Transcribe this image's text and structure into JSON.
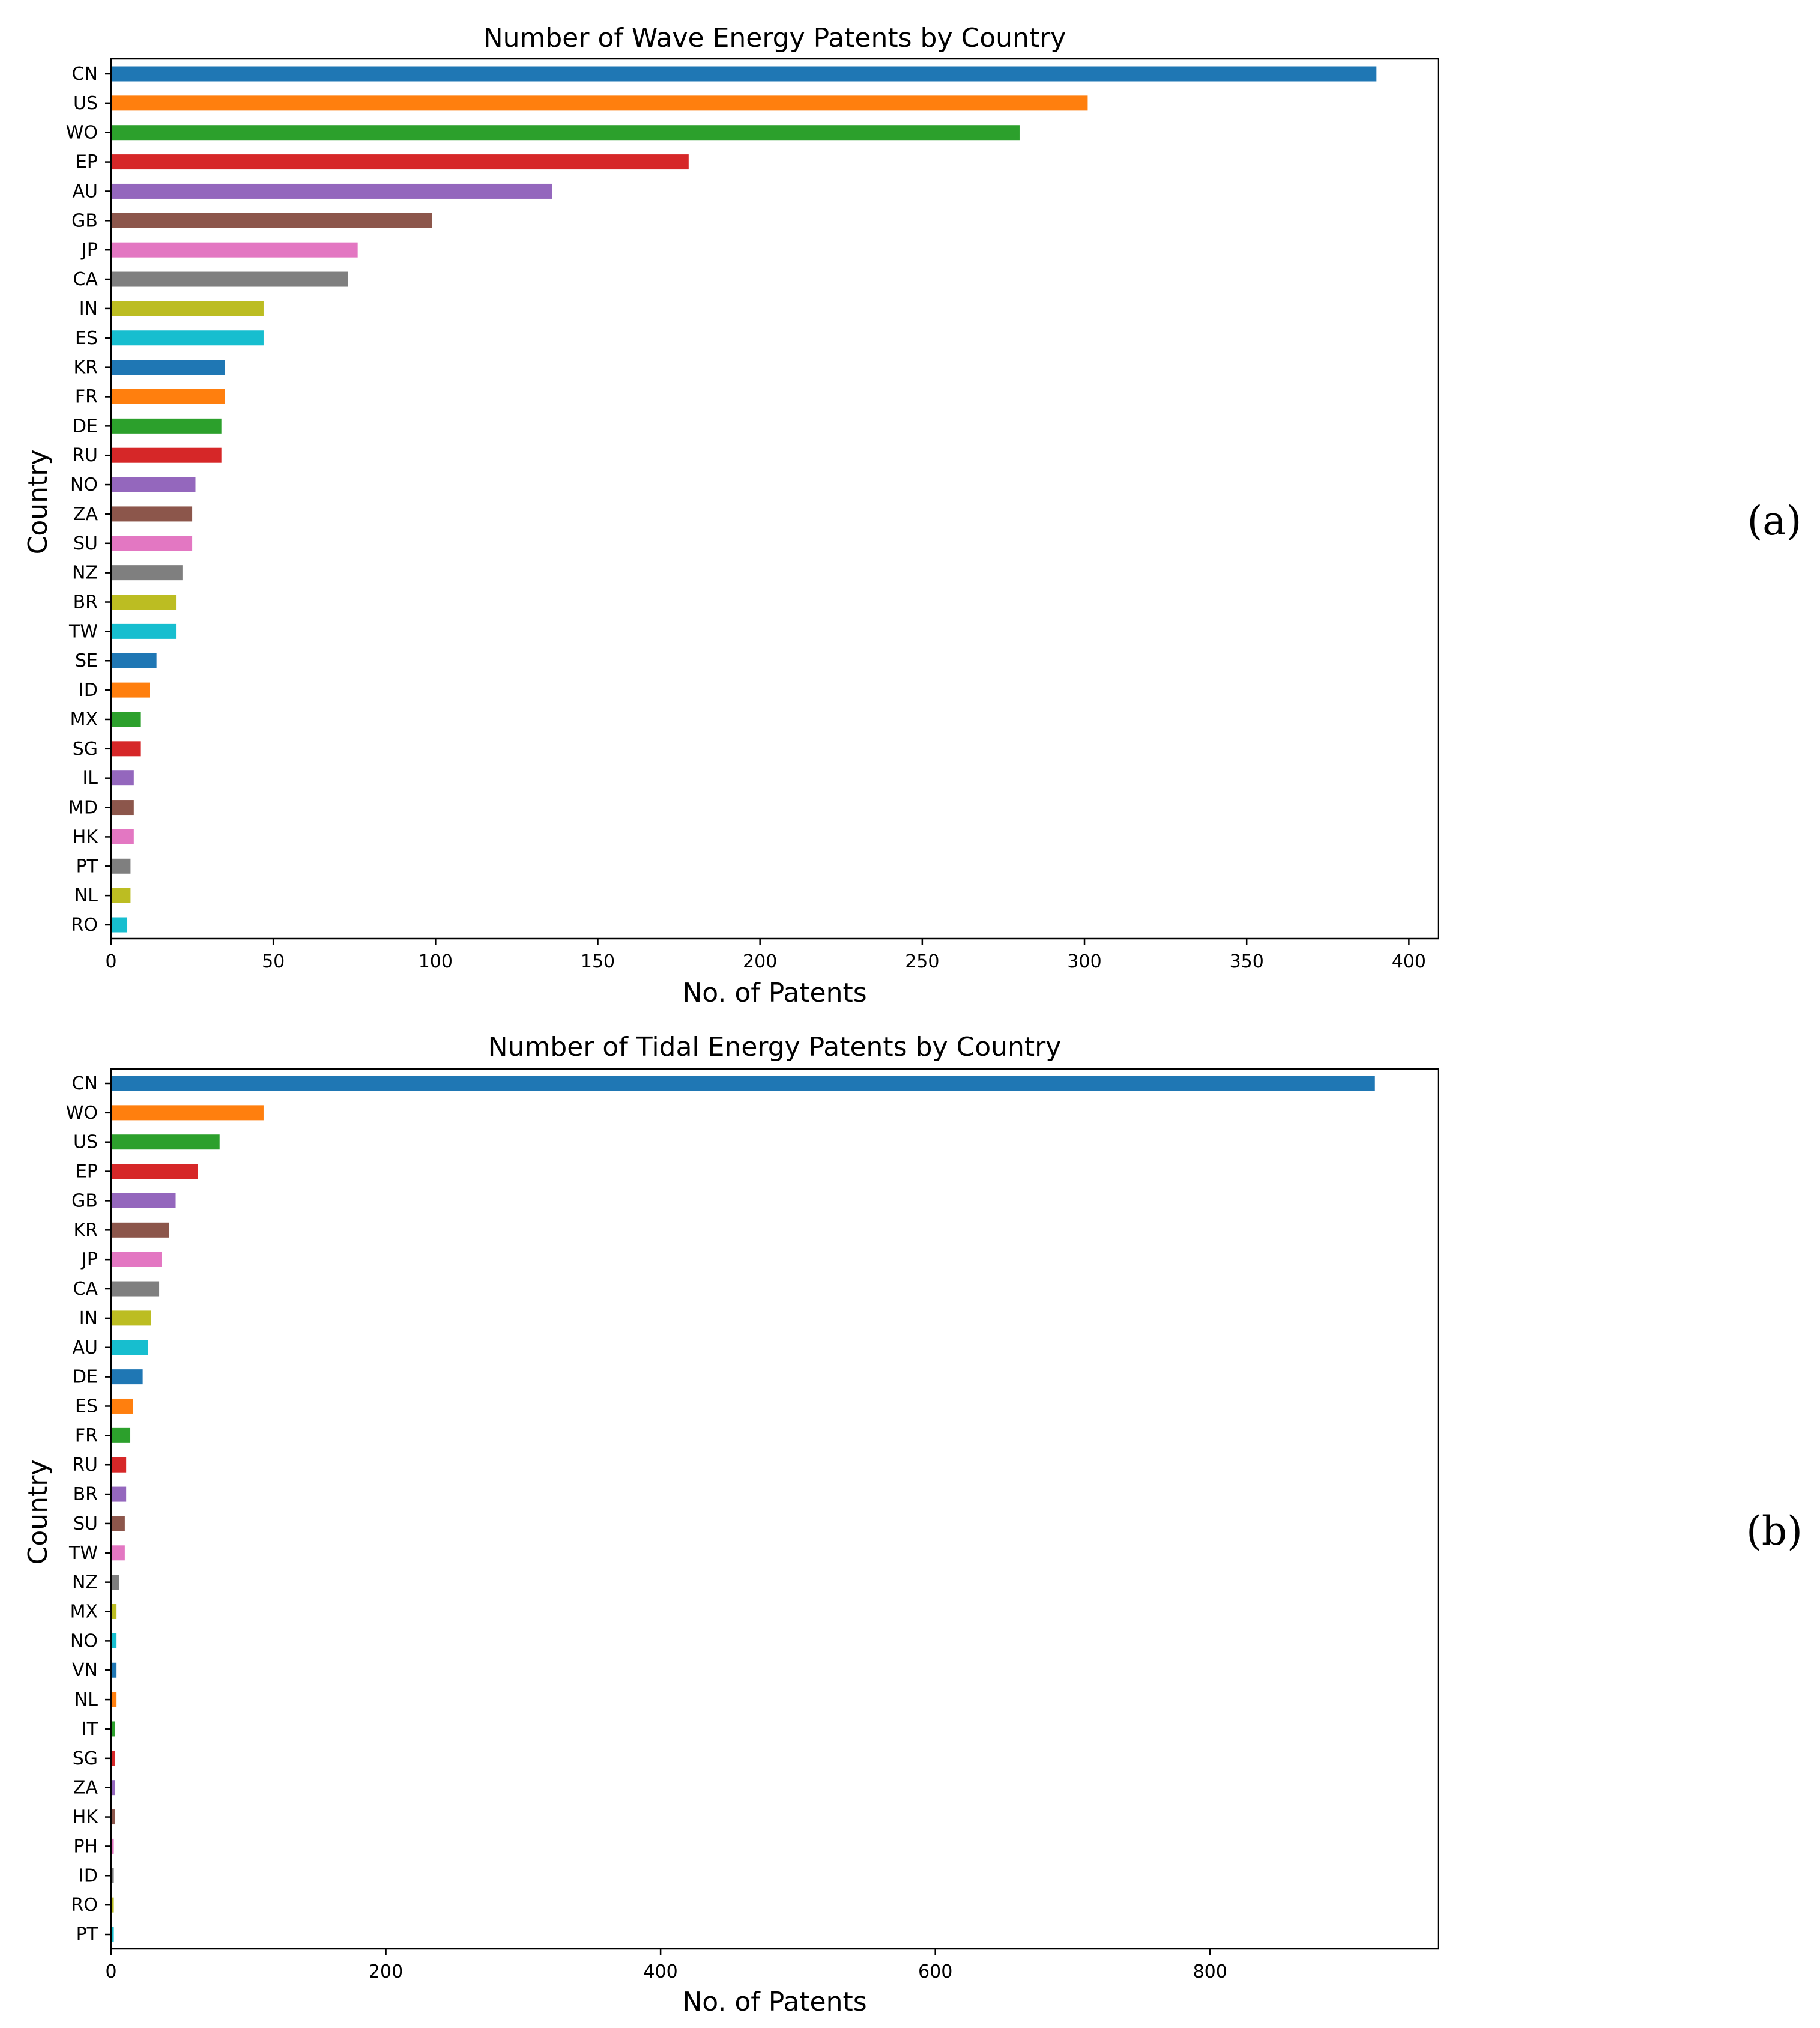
{
  "colors": [
    "#1f77b4",
    "#ff7f0e",
    "#2ca02c",
    "#d62728",
    "#9467bd",
    "#8c564b",
    "#e377c2",
    "#7f7f7f",
    "#bcbd22",
    "#17becf"
  ],
  "chart_data": [
    {
      "type": "bar",
      "orientation": "horizontal",
      "panel_label": "(a)",
      "title": "Number of Wave Energy Patents by Country",
      "xlabel": "No. of Patents",
      "ylabel": "Country",
      "xlim": [
        0,
        409
      ],
      "xticks": [
        0,
        50,
        100,
        150,
        200,
        250,
        300,
        350,
        400
      ],
      "grid": false,
      "categories": [
        "CN",
        "US",
        "WO",
        "EP",
        "AU",
        "GB",
        "JP",
        "CA",
        "IN",
        "ES",
        "KR",
        "FR",
        "DE",
        "RU",
        "NO",
        "ZA",
        "SU",
        "NZ",
        "BR",
        "TW",
        "SE",
        "ID",
        "MX",
        "SG",
        "IL",
        "MD",
        "HK",
        "PT",
        "NL",
        "RO"
      ],
      "values": [
        390,
        301,
        280,
        178,
        136,
        99,
        76,
        73,
        47,
        47,
        35,
        35,
        34,
        34,
        26,
        25,
        25,
        22,
        20,
        20,
        14,
        12,
        9,
        9,
        7,
        7,
        7,
        6,
        6,
        5
      ]
    },
    {
      "type": "bar",
      "orientation": "horizontal",
      "panel_label": "(b)",
      "title": "Number of Tidal Energy Patents by Country",
      "xlabel": "No. of Patents",
      "ylabel": "Country",
      "xlim": [
        0,
        966
      ],
      "xticks": [
        0,
        200,
        400,
        600,
        800
      ],
      "grid": false,
      "categories": [
        "CN",
        "WO",
        "US",
        "EP",
        "GB",
        "KR",
        "JP",
        "CA",
        "IN",
        "AU",
        "DE",
        "ES",
        "FR",
        "RU",
        "BR",
        "SU",
        "TW",
        "NZ",
        "MX",
        "NO",
        "VN",
        "NL",
        "IT",
        "SG",
        "ZA",
        "HK",
        "PH",
        "ID",
        "RO",
        "PT"
      ],
      "values": [
        920,
        111,
        79,
        63,
        47,
        42,
        37,
        35,
        29,
        27,
        23,
        16,
        14,
        11,
        11,
        10,
        10,
        6,
        4,
        4,
        4,
        4,
        3,
        3,
        3,
        3,
        2,
        2,
        2,
        2
      ]
    }
  ]
}
